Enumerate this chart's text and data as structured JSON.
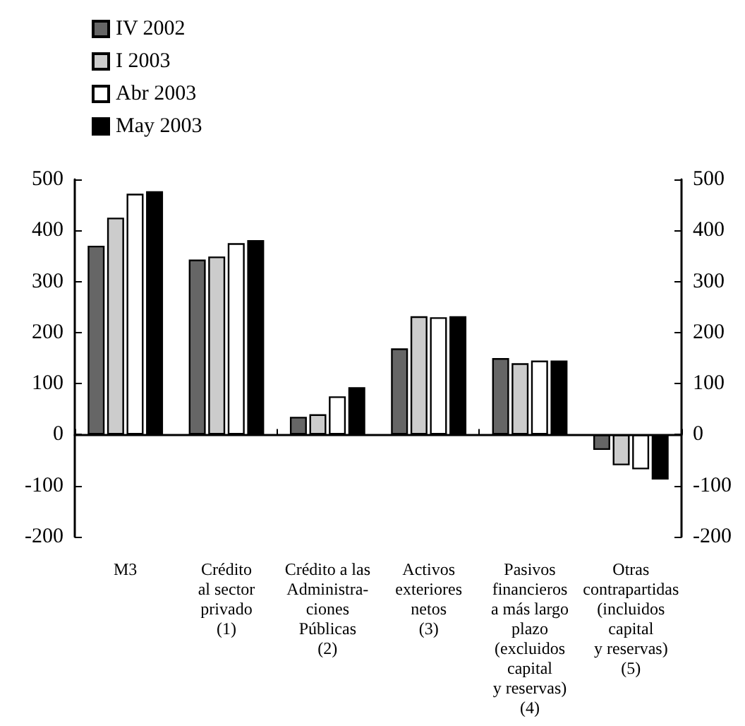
{
  "chart_data": {
    "type": "bar",
    "categories": [
      "M3",
      "Crédito\nal sector\nprivado\n(1)",
      "Crédito a las\nAdministra-\nciones\nPúblicas\n(2)",
      "Activos\nexteriores\nnetos\n(3)",
      "Pasivos\nfinancieros\na más largo\nplazo\n(excluidos\ncapital\ny reservas)\n(4)",
      "Otras\ncontrapartidas\n(incluidos\ncapital\ny reservas)\n(5)"
    ],
    "series": [
      {
        "name": "IV 2002",
        "color": "#666666",
        "values": [
          370,
          343,
          35,
          169,
          150,
          -30
        ]
      },
      {
        "name": "I 2003",
        "color": "#cccccc",
        "values": [
          425,
          349,
          40,
          232,
          140,
          -60
        ]
      },
      {
        "name": "Abr 2003",
        "color": "#ffffff",
        "values": [
          472,
          375,
          75,
          230,
          145,
          -68
        ]
      },
      {
        "name": "May 2003",
        "color": "#000000",
        "values": [
          477,
          381,
          93,
          232,
          145,
          -88
        ]
      }
    ],
    "ylim": [
      -200,
      500
    ],
    "yticks": [
      -200,
      -100,
      0,
      100,
      200,
      300,
      400,
      500
    ],
    "y2lim": [
      -200,
      500
    ],
    "y2ticks": [
      -200,
      -100,
      0,
      100,
      200,
      300,
      400,
      500
    ],
    "legend": "top left"
  }
}
